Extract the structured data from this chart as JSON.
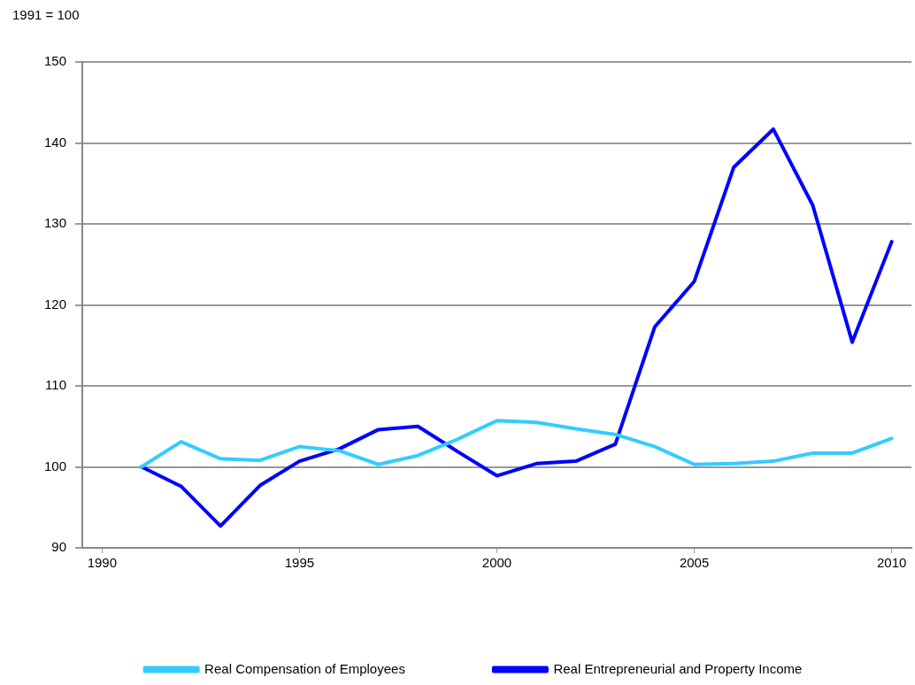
{
  "chart_data": {
    "type": "line",
    "ylabel": "1991 = 100",
    "x": [
      1991,
      1992,
      1993,
      1994,
      1995,
      1996,
      1997,
      1998,
      1999,
      2000,
      2001,
      2002,
      2003,
      2004,
      2005,
      2006,
      2007,
      2008,
      2009,
      2010
    ],
    "series": [
      {
        "name": "Real Compensation of Employees",
        "color": "#33ccff",
        "values": [
          100,
          103.1,
          101,
          100.8,
          102.5,
          102,
          100.3,
          101.4,
          103.4,
          105.7,
          105.5,
          104.7,
          104,
          102.5,
          100.3,
          100.4,
          100.7,
          101.7,
          101.7,
          103.5
        ]
      },
      {
        "name": "Real Entrepreneurial and Property Income",
        "color": "#0000ff",
        "values": [
          100,
          97.6,
          92.7,
          97.7,
          100.7,
          102.2,
          104.6,
          105,
          101.9,
          98.9,
          100.4,
          100.7,
          102.8,
          117.3,
          122.9,
          137,
          141.7,
          132.3,
          115.4,
          127.8
        ]
      }
    ],
    "xlim": [
      1989.5,
      2010.5
    ],
    "xticks": [
      1990,
      1995,
      2000,
      2005,
      2010
    ],
    "ylim": [
      90,
      150
    ],
    "yticks": [
      90,
      100,
      110,
      120,
      130,
      140,
      150
    ],
    "grid": "y",
    "legend": "bottom",
    "marker": "none",
    "line_style": "solid"
  }
}
